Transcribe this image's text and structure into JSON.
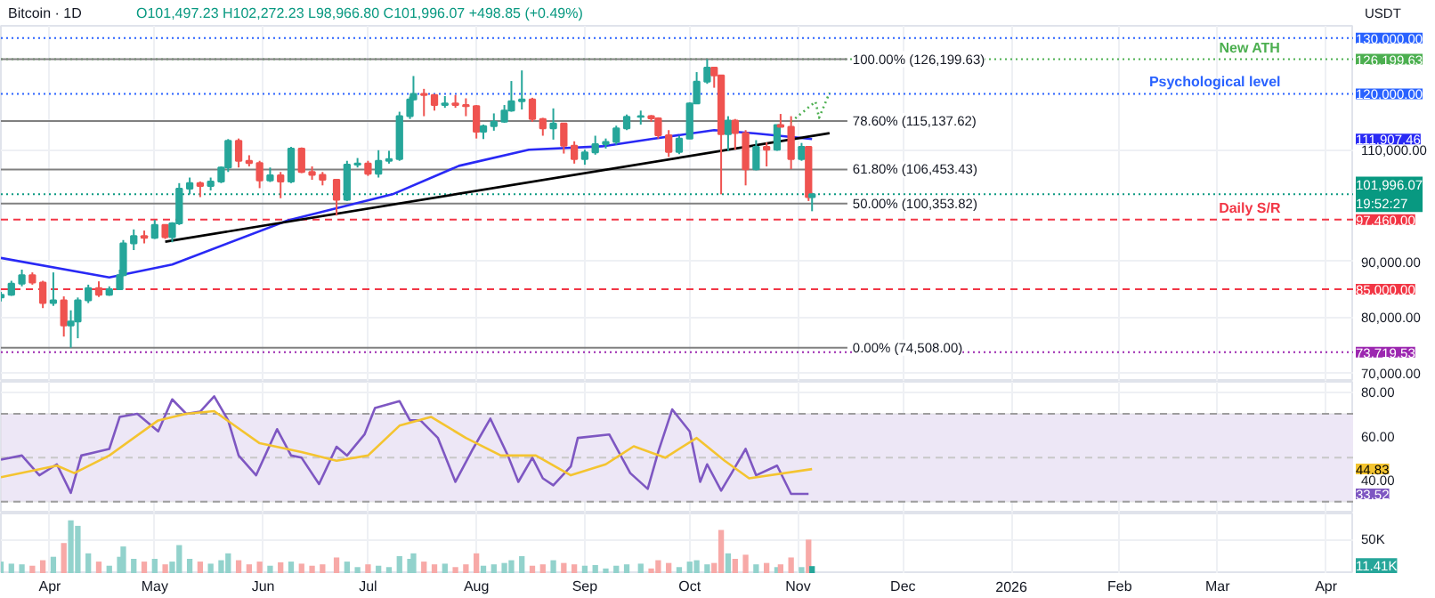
{
  "chart_data": [
    {
      "type": "candlestick",
      "title": "Bitcoin · 1D",
      "subtitle": "O101,497.23 H102,272.23 L98,966.80 C101,996.07 +498.85 (+0.49%)",
      "ylabel": "USDT",
      "x": [
        "2025-03-18",
        "2025-03-21",
        "2025-03-24",
        "2025-03-27",
        "2025-03-30",
        "2025-04-02",
        "2025-04-05",
        "2025-04-07",
        "2025-04-09",
        "2025-04-12",
        "2025-04-15",
        "2025-04-18",
        "2025-04-21",
        "2025-04-22",
        "2025-04-25",
        "2025-04-28",
        "2025-05-01",
        "2025-05-04",
        "2025-05-06",
        "2025-05-08",
        "2025-05-11",
        "2025-05-14",
        "2025-05-17",
        "2025-05-20",
        "2025-05-22",
        "2025-05-25",
        "2025-05-28",
        "2025-05-31",
        "2025-06-03",
        "2025-06-06",
        "2025-06-09",
        "2025-06-12",
        "2025-06-15",
        "2025-06-18",
        "2025-06-22",
        "2025-06-25",
        "2025-06-28",
        "2025-07-01",
        "2025-07-04",
        "2025-07-07",
        "2025-07-10",
        "2025-07-13",
        "2025-07-14",
        "2025-07-17",
        "2025-07-20",
        "2025-07-23",
        "2025-07-26",
        "2025-07-29",
        "2025-08-01",
        "2025-08-03",
        "2025-08-06",
        "2025-08-09",
        "2025-08-11",
        "2025-08-14",
        "2025-08-17",
        "2025-08-20",
        "2025-08-23",
        "2025-08-26",
        "2025-08-29",
        "2025-09-01",
        "2025-09-04",
        "2025-09-07",
        "2025-09-10",
        "2025-09-13",
        "2025-09-17",
        "2025-09-20",
        "2025-09-22",
        "2025-09-25",
        "2025-09-28",
        "2025-10-01",
        "2025-10-03",
        "2025-10-06",
        "2025-10-08",
        "2025-10-10",
        "2025-10-12",
        "2025-10-14",
        "2025-10-17",
        "2025-10-20",
        "2025-10-23",
        "2025-10-26",
        "2025-10-27",
        "2025-10-30",
        "2025-11-02",
        "2025-11-04",
        "2025-11-05"
      ],
      "ohlc": [
        [
          83500,
          84500,
          82800,
          84000
        ],
        [
          84000,
          86500,
          83800,
          86000
        ],
        [
          86000,
          88500,
          85500,
          87500
        ],
        [
          87500,
          88000,
          85800,
          86200
        ],
        [
          86200,
          86500,
          81600,
          82500
        ],
        [
          82500,
          88000,
          82000,
          83000
        ],
        [
          83000,
          83700,
          76500,
          78500
        ],
        [
          78500,
          81200,
          74508,
          79200
        ],
        [
          79200,
          83500,
          76200,
          83000
        ],
        [
          83000,
          85800,
          82500,
          85200
        ],
        [
          85200,
          86400,
          83600,
          84000
        ],
        [
          84000,
          85500,
          83800,
          85000
        ],
        [
          85000,
          88500,
          84900,
          87500
        ],
        [
          87500,
          93800,
          87300,
          93200
        ],
        [
          93200,
          95700,
          92000,
          94500
        ],
        [
          94500,
          95500,
          93200,
          94200
        ],
        [
          94200,
          97400,
          94000,
          96500
        ],
        [
          96500,
          96600,
          94000,
          94300
        ],
        [
          94300,
          97000,
          93400,
          96800
        ],
        [
          96800,
          104000,
          96500,
          103000
        ],
        [
          103000,
          105000,
          102000,
          104000
        ],
        [
          104000,
          104300,
          101500,
          103500
        ],
        [
          103500,
          105000,
          102700,
          104300
        ],
        [
          104300,
          107000,
          104000,
          106800
        ],
        [
          106800,
          111900,
          106000,
          111600
        ],
        [
          111600,
          112000,
          106800,
          108000
        ],
        [
          108000,
          109000,
          107000,
          107600
        ],
        [
          107600,
          108000,
          103100,
          104500
        ],
        [
          104500,
          106800,
          104200,
          105400
        ],
        [
          105400,
          106000,
          101300,
          104300
        ],
        [
          104300,
          110500,
          104000,
          110200
        ],
        [
          110200,
          110400,
          105800,
          106000
        ],
        [
          106000,
          107000,
          104600,
          105500
        ],
        [
          105500,
          106000,
          103600,
          104600
        ],
        [
          104600,
          104700,
          98200,
          101000
        ],
        [
          101000,
          108000,
          100800,
          107300
        ],
        [
          107300,
          108500,
          106800,
          107500
        ],
        [
          107500,
          108000,
          105300,
          105700
        ],
        [
          105700,
          109900,
          105000,
          108000
        ],
        [
          108000,
          109800,
          107500,
          108300
        ],
        [
          108300,
          116800,
          108000,
          116000
        ],
        [
          116000,
          119500,
          115500,
          119000
        ],
        [
          119000,
          123200,
          118800,
          120000
        ],
        [
          120000,
          120900,
          116000,
          119800
        ],
        [
          119800,
          119900,
          117000,
          118000
        ],
        [
          118000,
          119600,
          117500,
          118300
        ],
        [
          118300,
          119800,
          117500,
          118000
        ],
        [
          118000,
          119200,
          116000,
          117800
        ],
        [
          117800,
          118000,
          112000,
          113200
        ],
        [
          113200,
          114500,
          111900,
          114200
        ],
        [
          114200,
          116500,
          113400,
          115000
        ],
        [
          115000,
          118000,
          114800,
          117000
        ],
        [
          117000,
          122300,
          116800,
          118700
        ],
        [
          118700,
          124200,
          117200,
          119000
        ],
        [
          119000,
          119300,
          115000,
          115500
        ],
        [
          115500,
          115700,
          112500,
          113800
        ],
        [
          113800,
          117400,
          111800,
          114700
        ],
        [
          114700,
          114800,
          109300,
          110700
        ],
        [
          110700,
          111500,
          107500,
          108300
        ],
        [
          108300,
          110000,
          107300,
          109500
        ],
        [
          109500,
          112500,
          109100,
          111000
        ],
        [
          111000,
          112000,
          110200,
          111400
        ],
        [
          111400,
          114300,
          110900,
          113800
        ],
        [
          113800,
          116300,
          113500,
          115900
        ],
        [
          115900,
          117000,
          114500,
          116000
        ],
        [
          116000,
          116200,
          115000,
          115600
        ],
        [
          115600,
          115800,
          112000,
          112600
        ],
        [
          112600,
          113500,
          108700,
          109600
        ],
        [
          109600,
          112500,
          109200,
          112000
        ],
        [
          112000,
          118500,
          111900,
          118300
        ],
        [
          118300,
          123900,
          118200,
          122200
        ],
        [
          122200,
          126199,
          121800,
          124700
        ],
        [
          124700,
          124800,
          121100,
          123300
        ],
        [
          123300,
          123300,
          102000,
          112800
        ],
        [
          112800,
          116000,
          109800,
          115200
        ],
        [
          115200,
          115500,
          110000,
          113000
        ],
        [
          113000,
          113500,
          103600,
          106500
        ],
        [
          106500,
          111700,
          106300,
          110500
        ],
        [
          110500,
          111300,
          107000,
          110000
        ],
        [
          110000,
          114500,
          109800,
          114400
        ],
        [
          114400,
          116400,
          114000,
          114100
        ],
        [
          114100,
          116000,
          106500,
          108300
        ],
        [
          108300,
          111200,
          108000,
          110500
        ],
        [
          110500,
          110600,
          100800,
          101497
        ],
        [
          101497.23,
          102272.23,
          98966.8,
          101996.07
        ]
      ],
      "colors": [
        "#26a69a",
        "#26a69a",
        "#26a69a",
        "#ef5350",
        "#ef5350",
        "#26a69a",
        "#ef5350",
        "#26a69a",
        "#26a69a",
        "#26a69a",
        "#ef5350",
        "#26a69a",
        "#26a69a",
        "#26a69a",
        "#26a69a",
        "#ef5350",
        "#26a69a",
        "#ef5350",
        "#26a69a",
        "#26a69a",
        "#26a69a",
        "#ef5350",
        "#26a69a",
        "#26a69a",
        "#26a69a",
        "#ef5350",
        "#ef5350",
        "#ef5350",
        "#26a69a",
        "#ef5350",
        "#26a69a",
        "#ef5350",
        "#ef5350",
        "#ef5350",
        "#ef5350",
        "#26a69a",
        "#26a69a",
        "#ef5350",
        "#26a69a",
        "#26a69a",
        "#26a69a",
        "#26a69a",
        "#26a69a",
        "#ef5350",
        "#ef5350",
        "#26a69a",
        "#ef5350",
        "#ef5350",
        "#ef5350",
        "#26a69a",
        "#26a69a",
        "#26a69a",
        "#26a69a",
        "#26a69a",
        "#ef5350",
        "#ef5350",
        "#26a69a",
        "#ef5350",
        "#ef5350",
        "#26a69a",
        "#26a69a",
        "#26a69a",
        "#26a69a",
        "#26a69a",
        "#26a69a",
        "#ef5350",
        "#ef5350",
        "#ef5350",
        "#26a69a",
        "#26a69a",
        "#26a69a",
        "#26a69a",
        "#ef5350",
        "#ef5350",
        "#26a69a",
        "#ef5350",
        "#ef5350",
        "#26a69a",
        "#ef5350",
        "#26a69a",
        "#ef5350",
        "#ef5350",
        "#26a69a",
        "#ef5350",
        "#26a69a"
      ],
      "series": [
        {
          "type": "line",
          "color": "#2929f5",
          "x": [
            "2025-03-18",
            "2025-04-18",
            "2025-05-06",
            "2025-06-08",
            "2025-07-08",
            "2025-07-27",
            "2025-08-16",
            "2025-09-06",
            "2025-09-20",
            "2025-10-08",
            "2025-10-20",
            "2025-11-05"
          ],
          "values": [
            90600,
            87100,
            89400,
            97300,
            102000,
            107100,
            110000,
            110600,
            111900,
            113500,
            112900,
            111907.46
          ]
        },
        {
          "type": "line",
          "color": "#000000",
          "x": [
            "2025-05-04",
            "2025-11-10"
          ],
          "values": [
            93500,
            112960
          ]
        },
        {
          "type": "line",
          "color": "#4caf50",
          "line_style": "dotted",
          "x": [
            "2025-10-30",
            "2025-11-06",
            "2025-11-07",
            "2025-11-10"
          ],
          "values": [
            115000,
            118600,
            115700,
            120200
          ]
        }
      ],
      "xlim": [
        "2025-03-18",
        "2026-04-09"
      ],
      "xticks": [
        {
          "value": "2025-04",
          "label": null
        },
        {
          "value": "2025-05",
          "label": null
        },
        {
          "value": "2025-06",
          "label": null
        },
        {
          "value": "2025-07",
          "label": null
        },
        {
          "value": "2025-08",
          "label": null
        },
        {
          "value": "2025-09",
          "label": null
        },
        {
          "value": "2025-10",
          "label": null
        },
        {
          "value": "2025-11",
          "label": null
        },
        {
          "value": "2025-12",
          "label": null
        },
        {
          "value": "2026",
          "label": null
        },
        {
          "value": "2026-02",
          "label": null
        },
        {
          "value": "2026-03",
          "label": null
        },
        {
          "value": "2026-04",
          "label": null
        }
      ],
      "ylim": [
        68400,
        132200
      ],
      "yticks": [
        {
          "value": 70000,
          "label": "70,000.00"
        },
        {
          "value": 80000,
          "label": "80,000.00"
        },
        {
          "value": 90000,
          "label": "90,000.00"
        },
        {
          "value": 110000,
          "label": "110,000.00"
        }
      ],
      "tick_labels": "y",
      "grid": true,
      "marker": "none",
      "ref_lines": [
        {
          "axis": "y",
          "value": 126199.63,
          "label": "100.00% (126,199.63)",
          "color": "#808080",
          "line_style": "solid"
        },
        {
          "axis": "y",
          "value": 115137.62,
          "label": "78.60% (115,137.62)",
          "color": "#808080",
          "line_style": "solid"
        },
        {
          "axis": "y",
          "value": 106453.43,
          "label": "61.80% (106,453.43)",
          "color": "#808080",
          "line_style": "solid"
        },
        {
          "axis": "y",
          "value": 100353.82,
          "label": "50.00% (100,353.82)",
          "color": "#808080",
          "line_style": "solid"
        },
        {
          "axis": "y",
          "value": 74508.0,
          "label": "0.00% (74,508.00)",
          "color": "#808080",
          "line_style": "solid"
        },
        {
          "axis": "y",
          "value": 130000,
          "label": "130,000.00",
          "color": "#2962ff",
          "line_style": "dotted"
        },
        {
          "axis": "y",
          "value": 126199.63,
          "label": "126,199.63",
          "color": "#4caf50",
          "line_style": "dotted"
        },
        {
          "axis": "y",
          "value": 120000,
          "label": "120,000.00",
          "color": "#2962ff",
          "line_style": "dotted"
        },
        {
          "axis": "y",
          "value": 101996.07,
          "label": "101,996.07\n19:52:27",
          "color": "#089981",
          "line_style": "dotted"
        },
        {
          "axis": "y",
          "value": 97460,
          "label": "97,460.00",
          "color": "#f23645",
          "line_style": "dashed"
        },
        {
          "axis": "y",
          "value": 85000,
          "label": "85,000.00",
          "color": "#f23645",
          "line_style": "dashed"
        },
        {
          "axis": "y",
          "value": 73719.53,
          "label": "73,719.53",
          "color": "#9c27b0",
          "line_style": "dotted"
        }
      ],
      "annotations": [
        {
          "text": "New ATH",
          "x": "2026-03-19",
          "y": 126199.63
        },
        {
          "text": "Psychological level",
          "x": "2026-03-19",
          "y": 120000
        },
        {
          "text": "Daily S/R",
          "x": "2026-03-19",
          "y": 97460
        },
        "111,907.46"
      ]
    },
    {
      "type": "line",
      "series": [
        {
          "color": "#7e57c2",
          "x": [
            "2025-03-18",
            "2025-03-24",
            "2025-03-29",
            "2025-04-03",
            "2025-04-07",
            "2025-04-10",
            "2025-04-18",
            "2025-04-21",
            "2025-04-26",
            "2025-05-02",
            "2025-05-06",
            "2025-05-10",
            "2025-05-14",
            "2025-05-18",
            "2025-05-22",
            "2025-05-25",
            "2025-05-30",
            "2025-06-05",
            "2025-06-09",
            "2025-06-12",
            "2025-06-17",
            "2025-06-22",
            "2025-06-25",
            "2025-06-30",
            "2025-07-03",
            "2025-07-10",
            "2025-07-13",
            "2025-07-16",
            "2025-07-21",
            "2025-07-26",
            "2025-07-31",
            "2025-08-05",
            "2025-08-10",
            "2025-08-13",
            "2025-08-17",
            "2025-08-20",
            "2025-08-23",
            "2025-08-28",
            "2025-08-30",
            "2025-09-08",
            "2025-09-14",
            "2025-09-19",
            "2025-09-22",
            "2025-09-26",
            "2025-10-01",
            "2025-10-04",
            "2025-10-06",
            "2025-10-10",
            "2025-10-13",
            "2025-10-17",
            "2025-10-20",
            "2025-10-26",
            "2025-10-30",
            "2025-11-02",
            "2025-11-04"
          ],
          "values": [
            49.1,
            51,
            42,
            47,
            34,
            51,
            54,
            68.6,
            70,
            62,
            76.6,
            70,
            71,
            78,
            67,
            51,
            42,
            63,
            51,
            50,
            38,
            55,
            51,
            60.6,
            72.6,
            75.8,
            67,
            67,
            59,
            39,
            54,
            67.8,
            51,
            39,
            50,
            40.6,
            37.4,
            46,
            59,
            60.6,
            43,
            35.8,
            52.6,
            72,
            62,
            39,
            47,
            35,
            43,
            54,
            42,
            46.4,
            33.52,
            33.52,
            33.52
          ]
        },
        {
          "color": "#f4c430",
          "x": [
            "2025-03-18",
            "2025-04-03",
            "2025-04-08",
            "2025-04-18",
            "2025-05-02",
            "2025-05-10",
            "2025-05-18",
            "2025-05-31",
            "2025-06-12",
            "2025-06-22",
            "2025-07-01",
            "2025-07-10",
            "2025-07-19",
            "2025-07-29",
            "2025-08-08",
            "2025-08-18",
            "2025-08-28",
            "2025-09-07",
            "2025-09-15",
            "2025-09-24",
            "2025-10-03",
            "2025-10-11",
            "2025-10-18",
            "2025-11-05"
          ],
          "values": [
            41.1,
            46.4,
            43,
            51,
            67,
            70,
            71.2,
            56.6,
            52.6,
            48.6,
            51,
            64.6,
            68.6,
            59,
            51,
            51,
            42,
            47,
            55.2,
            50,
            59,
            48.6,
            40.6,
            44.83
          ]
        }
      ],
      "xlim": [
        "2025-03-18",
        "2026-04-09"
      ],
      "xticks": [
        {
          "value": "2025-04",
          "label": null
        },
        {
          "value": "2025-05",
          "label": null
        },
        {
          "value": "2025-06",
          "label": null
        },
        {
          "value": "2025-07",
          "label": null
        },
        {
          "value": "2025-08",
          "label": null
        },
        {
          "value": "2025-09",
          "label": null
        },
        {
          "value": "2025-10",
          "label": null
        },
        {
          "value": "2025-11",
          "label": null
        },
        {
          "value": "2025-12",
          "label": null
        },
        {
          "value": "2026",
          "label": null
        },
        {
          "value": "2026-02",
          "label": null
        },
        {
          "value": "2026-03",
          "label": null
        },
        {
          "value": "2026-04",
          "label": null
        }
      ],
      "ylim": [
        24.6,
        84.6
      ],
      "yticks": [
        {
          "value": 40,
          "label": "40.00"
        },
        {
          "value": 60,
          "label": "60.00"
        },
        {
          "value": 80,
          "label": "80.00"
        }
      ],
      "tick_labels": "y",
      "grid": true,
      "marker": "none",
      "bands": [
        {
          "axis": "y",
          "from": 30,
          "to": 70,
          "color": "#ede7f6"
        }
      ],
      "ref_lines": [
        {
          "axis": "y",
          "value": 70,
          "color": "#9e9e9e",
          "line_style": "dashed"
        },
        {
          "axis": "y",
          "value": 50,
          "color": "#c8c8c8",
          "line_style": "dashed"
        },
        {
          "axis": "y",
          "value": 30,
          "color": "#9e9e9e",
          "line_style": "dashed"
        }
      ],
      "annotations": [
        {
          "text": "44.83",
          "y": 44.83
        },
        {
          "text": "33.52",
          "y": 33.52
        }
      ]
    },
    {
      "type": "bar",
      "x": [
        "2025-03-18",
        "2025-03-21",
        "2025-03-24",
        "2025-03-27",
        "2025-03-30",
        "2025-04-02",
        "2025-04-05",
        "2025-04-07",
        "2025-04-09",
        "2025-04-12",
        "2025-04-15",
        "2025-04-18",
        "2025-04-21",
        "2025-04-22",
        "2025-04-25",
        "2025-04-28",
        "2025-05-01",
        "2025-05-04",
        "2025-05-06",
        "2025-05-08",
        "2025-05-11",
        "2025-05-14",
        "2025-05-17",
        "2025-05-20",
        "2025-05-22",
        "2025-05-25",
        "2025-05-28",
        "2025-05-31",
        "2025-06-03",
        "2025-06-06",
        "2025-06-09",
        "2025-06-12",
        "2025-06-15",
        "2025-06-18",
        "2025-06-22",
        "2025-06-25",
        "2025-06-28",
        "2025-07-01",
        "2025-07-04",
        "2025-07-07",
        "2025-07-10",
        "2025-07-13",
        "2025-07-14",
        "2025-07-17",
        "2025-07-20",
        "2025-07-23",
        "2025-07-26",
        "2025-07-29",
        "2025-08-01",
        "2025-08-03",
        "2025-08-06",
        "2025-08-09",
        "2025-08-11",
        "2025-08-14",
        "2025-08-17",
        "2025-08-20",
        "2025-08-23",
        "2025-08-26",
        "2025-08-29",
        "2025-09-01",
        "2025-09-04",
        "2025-09-07",
        "2025-09-10",
        "2025-09-13",
        "2025-09-17",
        "2025-09-20",
        "2025-09-22",
        "2025-09-25",
        "2025-09-28",
        "2025-10-01",
        "2025-10-03",
        "2025-10-06",
        "2025-10-08",
        "2025-10-10",
        "2025-10-12",
        "2025-10-14",
        "2025-10-17",
        "2025-10-20",
        "2025-10-23",
        "2025-10-26",
        "2025-10-27",
        "2025-10-30",
        "2025-11-02",
        "2025-11-04",
        "2025-11-05"
      ],
      "values": [
        18000,
        15000,
        14000,
        12000,
        20000,
        25000,
        45000,
        78000,
        70000,
        30000,
        18000,
        12000,
        25000,
        40000,
        22000,
        18000,
        22000,
        14000,
        18000,
        42000,
        22000,
        18000,
        15000,
        20000,
        30000,
        20000,
        14000,
        18000,
        12000,
        17000,
        18000,
        15000,
        12000,
        14000,
        24000,
        18000,
        10000,
        14000,
        12000,
        10000,
        26000,
        22000,
        30000,
        18000,
        14000,
        15000,
        10000,
        14000,
        30000,
        12000,
        14000,
        16000,
        20000,
        26000,
        12000,
        14000,
        20000,
        16000,
        14000,
        12000,
        13000,
        8000,
        12000,
        14000,
        15000,
        8000,
        20000,
        16000,
        10000,
        18000,
        20000,
        14000,
        16000,
        64000,
        30000,
        22000,
        28000,
        14000,
        16000,
        10000,
        14000,
        24000,
        10000,
        50000,
        11410
      ],
      "colors": [
        "#92d2cc",
        "#92d2cc",
        "#92d2cc",
        "#f7a9a7",
        "#f7a9a7",
        "#92d2cc",
        "#f7a9a7",
        "#92d2cc",
        "#92d2cc",
        "#92d2cc",
        "#f7a9a7",
        "#92d2cc",
        "#92d2cc",
        "#92d2cc",
        "#92d2cc",
        "#f7a9a7",
        "#92d2cc",
        "#f7a9a7",
        "#92d2cc",
        "#92d2cc",
        "#92d2cc",
        "#f7a9a7",
        "#92d2cc",
        "#92d2cc",
        "#92d2cc",
        "#f7a9a7",
        "#f7a9a7",
        "#f7a9a7",
        "#92d2cc",
        "#f7a9a7",
        "#92d2cc",
        "#f7a9a7",
        "#f7a9a7",
        "#f7a9a7",
        "#f7a9a7",
        "#92d2cc",
        "#92d2cc",
        "#f7a9a7",
        "#92d2cc",
        "#92d2cc",
        "#92d2cc",
        "#92d2cc",
        "#92d2cc",
        "#f7a9a7",
        "#f7a9a7",
        "#92d2cc",
        "#f7a9a7",
        "#f7a9a7",
        "#f7a9a7",
        "#92d2cc",
        "#92d2cc",
        "#92d2cc",
        "#92d2cc",
        "#92d2cc",
        "#f7a9a7",
        "#f7a9a7",
        "#92d2cc",
        "#f7a9a7",
        "#f7a9a7",
        "#92d2cc",
        "#92d2cc",
        "#92d2cc",
        "#92d2cc",
        "#92d2cc",
        "#92d2cc",
        "#f7a9a7",
        "#f7a9a7",
        "#f7a9a7",
        "#92d2cc",
        "#92d2cc",
        "#92d2cc",
        "#92d2cc",
        "#f7a9a7",
        "#f7a9a7",
        "#92d2cc",
        "#f7a9a7",
        "#f7a9a7",
        "#92d2cc",
        "#f7a9a7",
        "#92d2cc",
        "#f7a9a7",
        "#f7a9a7",
        "#92d2cc",
        "#f7a9a7",
        "#26a69a"
      ],
      "xlim": [
        "2025-03-18",
        "2026-04-09"
      ],
      "xticks": [
        {
          "value": "2025-04",
          "label": "Apr"
        },
        {
          "value": "2025-05",
          "label": "May"
        },
        {
          "value": "2025-06",
          "label": "Jun"
        },
        {
          "value": "2025-07",
          "label": "Jul"
        },
        {
          "value": "2025-08",
          "label": "Aug"
        },
        {
          "value": "2025-09",
          "label": "Sep"
        },
        {
          "value": "2025-10",
          "label": "Oct"
        },
        {
          "value": "2025-11",
          "label": "Nov"
        },
        {
          "value": "2025-12",
          "label": "Dec"
        },
        {
          "value": "2026",
          "label": "2026"
        },
        {
          "value": "2026-02",
          "label": "Feb"
        },
        {
          "value": "2026-03",
          "label": "Mar"
        },
        {
          "value": "2026-04",
          "label": "Apr"
        }
      ],
      "ylim": [
        0,
        88000
      ],
      "yticks": [
        {
          "value": 50000,
          "label": "50K"
        }
      ],
      "grid": true,
      "annotations": [
        {
          "text": "11.41K",
          "y": 11410
        }
      ]
    }
  ]
}
